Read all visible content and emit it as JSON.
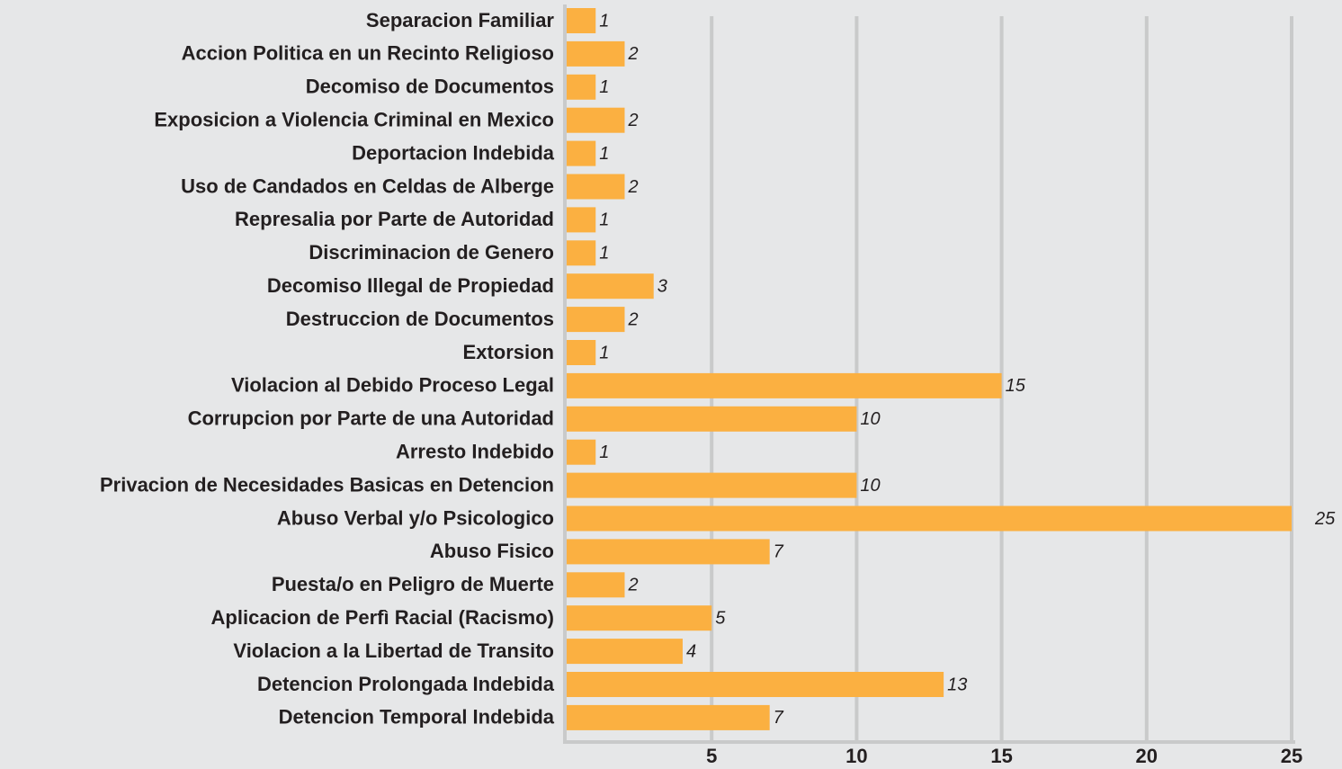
{
  "chart_data": {
    "type": "bar",
    "orientation": "horizontal",
    "categories": [
      "Separacion Familiar",
      "Accion Politica en un Recinto Religioso",
      "Decomiso de Documentos",
      "Exposicion a Violencia Criminal en Mexico",
      "Deportacion Indebida",
      "Uso de Candados en Celdas de Alberge",
      "Represalia por Parte de Autoridad",
      "Discriminacion de Genero",
      "Decomiso Illegal de Propiedad",
      "Destruccion de Documentos",
      "Extorsion",
      "Violacion al Debido Proceso Legal",
      "Corrupcion por Parte de una Autoridad",
      "Arresto Indebido",
      "Privacion de Necesidades Basicas en Detencion",
      "Abuso Verbal y/o Psicologico",
      "Abuso Fisico",
      "Puesta/o en Peligro de Muerte",
      "Aplicacion de Perfì Racial (Racismo)",
      "Violacion a la Libertad de Transito",
      "Detencion Prolongada Indebida",
      "Detencion Temporal Indebida"
    ],
    "values": [
      1,
      2,
      1,
      2,
      1,
      2,
      1,
      1,
      3,
      2,
      1,
      15,
      10,
      1,
      10,
      25,
      7,
      2,
      5,
      4,
      13,
      7
    ],
    "color": "#fbb041",
    "xlim": [
      0,
      25
    ],
    "xticks": [
      5,
      10,
      15,
      20,
      25
    ],
    "grid": true
  }
}
